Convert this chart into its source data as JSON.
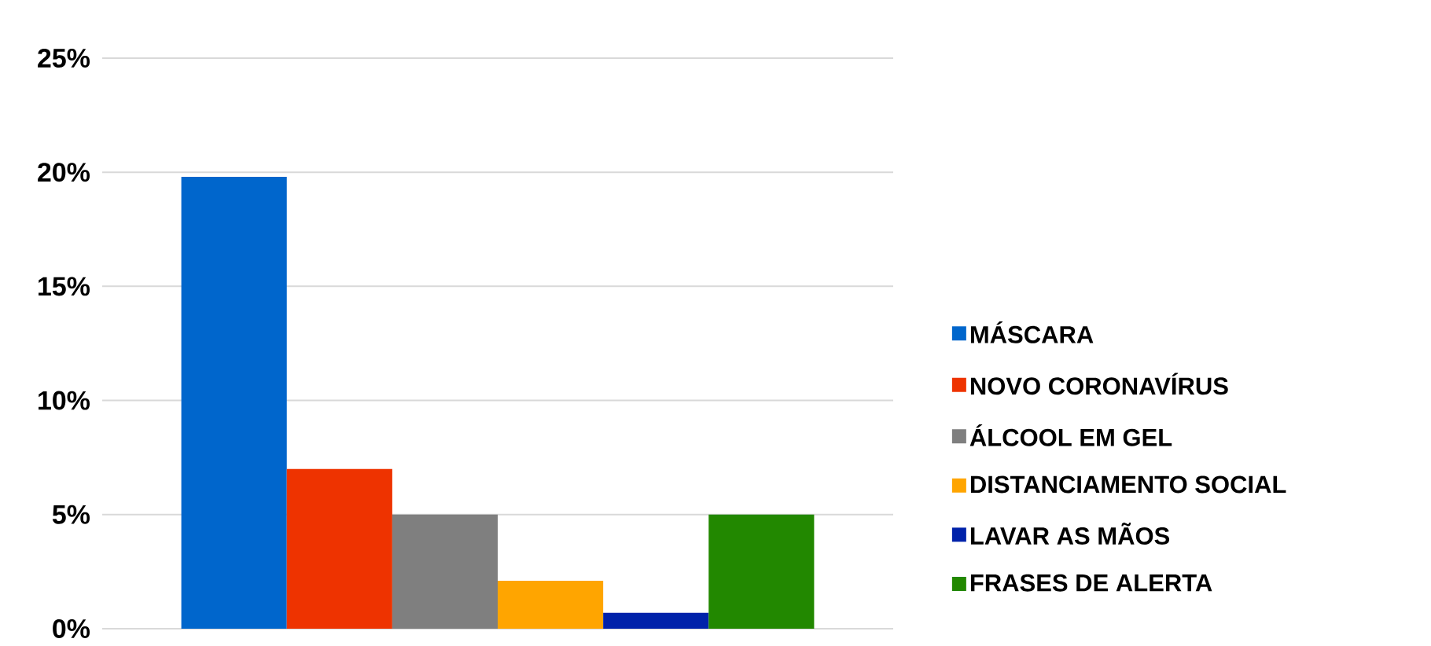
{
  "chart_data": {
    "type": "bar",
    "categories": [
      null
    ],
    "series": [
      {
        "name": "MÁSCARA",
        "color": "#0066cc",
        "values": [
          19.8
        ]
      },
      {
        "name": "NOVO CORONAVÍRUS",
        "color": "#ee3300",
        "values": [
          7.0
        ]
      },
      {
        "name": "ÁLCOOL EM GEL",
        "color": "#7f7f7f",
        "values": [
          5.0
        ]
      },
      {
        "name": "DISTANCIAMENTO SOCIAL",
        "color": "#ffa500",
        "values": [
          2.1
        ]
      },
      {
        "name": "LAVAR AS MÃOS",
        "color": "#0022aa",
        "values": [
          0.7
        ]
      },
      {
        "name": "FRASES DE ALERTA",
        "color": "#228800",
        "values": [
          5.0
        ]
      }
    ],
    "ylim": [
      0,
      25
    ],
    "yticks": [
      {
        "value": 0,
        "label": "0%"
      },
      {
        "value": 5,
        "label": "5%"
      },
      {
        "value": 10,
        "label": "10%"
      },
      {
        "value": 15,
        "label": "15%"
      },
      {
        "value": 20,
        "label": "20%"
      },
      {
        "value": 25,
        "label": "25%"
      }
    ],
    "grid": "y",
    "legend": "right"
  }
}
